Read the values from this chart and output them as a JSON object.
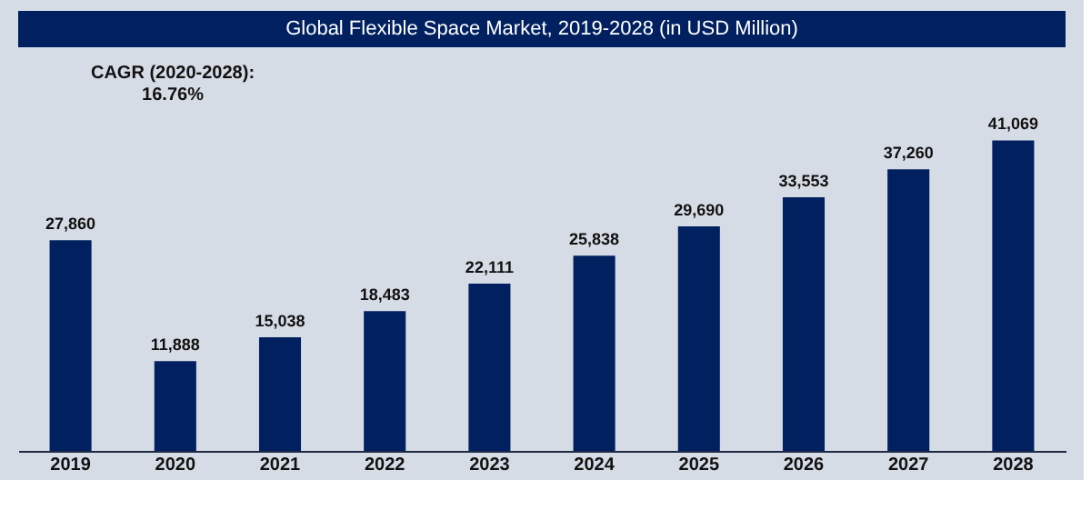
{
  "chart_data": {
    "type": "bar",
    "title": "Global Flexible Space Market, 2019-2028 (in USD Million)",
    "categories": [
      "2019",
      "2020",
      "2021",
      "2022",
      "2023",
      "2024",
      "2025",
      "2026",
      "2027",
      "2028"
    ],
    "values": [
      27860,
      11888,
      15038,
      18483,
      22111,
      25838,
      29690,
      33553,
      37260,
      41069
    ],
    "value_labels": [
      "27,860",
      "11,888",
      "15,038",
      "18,483",
      "22,111",
      "25,838",
      "29,690",
      "33,553",
      "37,260",
      "41,069"
    ],
    "color": "#002060",
    "grid": false,
    "annotations": [
      "CAGR (2020-2028):\n16.76%"
    ]
  }
}
